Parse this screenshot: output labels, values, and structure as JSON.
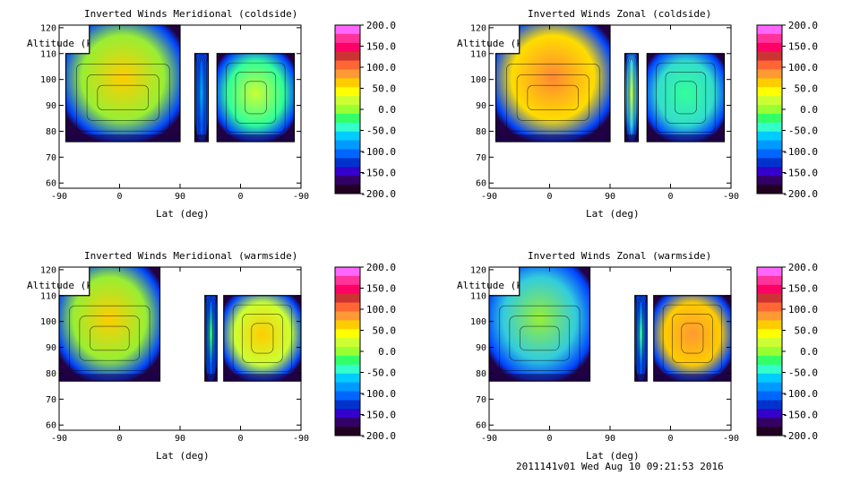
{
  "footer": "2011141v01 Wed Aug 10 09:21:53 2016",
  "ylabel_text": "Altitude (km)",
  "xlabel_text": "Lat (deg)",
  "x_ticks": [
    "-90",
    "0",
    "90",
    "0",
    "-90"
  ],
  "y_ticks": [
    "60",
    "70",
    "80",
    "90",
    "100",
    "110",
    "120"
  ],
  "colorbar_ticks": [
    "200.0",
    "150.0",
    "100.0",
    "50.0",
    "0.0",
    "-50.0",
    "-100.0",
    "-150.0",
    "-200.0"
  ],
  "colorbar_colors": [
    "#ff66ff",
    "#ff3399",
    "#ff0066",
    "#cc3333",
    "#ff6633",
    "#ff9933",
    "#ffcc00",
    "#ffff00",
    "#ccff33",
    "#99ff33",
    "#33ff66",
    "#33ffcc",
    "#00ccff",
    "#0099ff",
    "#0066ff",
    "#0033cc",
    "#3300cc",
    "#330066",
    "#220022"
  ],
  "chart_data": [
    {
      "type": "heatmap",
      "title": "Inverted Winds Meridional (coldside)",
      "xlabel": "Lat (deg)",
      "ylabel": "Altitude (km)",
      "x_tick_labels": [
        "-90",
        "0",
        "90",
        "0",
        "-90"
      ],
      "ylim": [
        58,
        121
      ],
      "colorbar_range": [
        -200,
        200
      ],
      "colorbar_ticks": [
        200,
        150,
        100,
        50,
        0,
        -50,
        -100,
        -150,
        -200
      ],
      "blocks": [
        {
          "x0": -80,
          "x1": 90,
          "bottom": 76,
          "top": 110,
          "tab_x0": -45,
          "tab_x1": 90,
          "tab_top": 121,
          "fill": "#99ee33",
          "hot": "#ffcc00"
        },
        {
          "x0": 112,
          "x1": 132,
          "bottom": 76,
          "top": 110,
          "fill": "#0055ff",
          "hot": "#00aaff"
        },
        {
          "x0": 145,
          "x1": 260,
          "bottom": 76,
          "top": 110,
          "fill": "#33ff99",
          "hot": "#ccff33"
        }
      ]
    },
    {
      "type": "heatmap",
      "title": "Inverted Winds Zonal (coldside)",
      "xlabel": "Lat (deg)",
      "ylabel": "Altitude (km)",
      "x_tick_labels": [
        "-90",
        "0",
        "90",
        "0",
        "-90"
      ],
      "ylim": [
        58,
        121
      ],
      "colorbar_range": [
        -200,
        200
      ],
      "colorbar_ticks": [
        200,
        150,
        100,
        50,
        0,
        -50,
        -100,
        -150,
        -200
      ],
      "blocks": [
        {
          "x0": -80,
          "x1": 90,
          "bottom": 76,
          "top": 110,
          "tab_x0": -45,
          "tab_x1": 90,
          "tab_top": 121,
          "fill": "#ffdd00",
          "hot": "#ff8833"
        },
        {
          "x0": 112,
          "x1": 132,
          "bottom": 76,
          "top": 110,
          "fill": "#33ccff",
          "hot": "#ccff33"
        },
        {
          "x0": 145,
          "x1": 260,
          "bottom": 76,
          "top": 110,
          "fill": "#33ddcc",
          "hot": "#33ff99"
        }
      ]
    },
    {
      "type": "heatmap",
      "title": "Inverted Winds Meridional (warmside)",
      "xlabel": "Lat (deg)",
      "ylabel": "Altitude (km)",
      "x_tick_labels": [
        "-90",
        "0",
        "90",
        "0",
        "-90"
      ],
      "ylim": [
        58,
        121
      ],
      "colorbar_range": [
        -200,
        200
      ],
      "colorbar_ticks": [
        200,
        150,
        100,
        50,
        0,
        -50,
        -100,
        -150,
        -200
      ],
      "blocks": [
        {
          "x0": -90,
          "x1": 60,
          "bottom": 77,
          "top": 110,
          "tab_x0": -45,
          "tab_x1": 60,
          "tab_top": 121,
          "fill": "#99ee33",
          "hot": "#ffcc00"
        },
        {
          "x0": 127,
          "x1": 145,
          "bottom": 77,
          "top": 110,
          "fill": "#0055ff",
          "hot": "#33ff66"
        },
        {
          "x0": 155,
          "x1": 270,
          "bottom": 77,
          "top": 110,
          "fill": "#ccff33",
          "hot": "#ffcc00"
        }
      ]
    },
    {
      "type": "heatmap",
      "title": "Inverted Winds Zonal (warmside)",
      "xlabel": "Lat (deg)",
      "ylabel": "Altitude (km)",
      "x_tick_labels": [
        "-90",
        "0",
        "90",
        "0",
        "-90"
      ],
      "ylim": [
        58,
        121
      ],
      "colorbar_range": [
        -200,
        200
      ],
      "colorbar_ticks": [
        200,
        150,
        100,
        50,
        0,
        -50,
        -100,
        -150,
        -200
      ],
      "blocks": [
        {
          "x0": -90,
          "x1": 60,
          "bottom": 77,
          "top": 110,
          "tab_x0": -45,
          "tab_x1": 60,
          "tab_top": 121,
          "fill": "#33ccdd",
          "hot": "#99ee33"
        },
        {
          "x0": 127,
          "x1": 145,
          "bottom": 77,
          "top": 110,
          "fill": "#0055ff",
          "hot": "#33ff99"
        },
        {
          "x0": 155,
          "x1": 270,
          "bottom": 77,
          "top": 110,
          "fill": "#ffcc00",
          "hot": "#ff9933"
        }
      ]
    }
  ]
}
